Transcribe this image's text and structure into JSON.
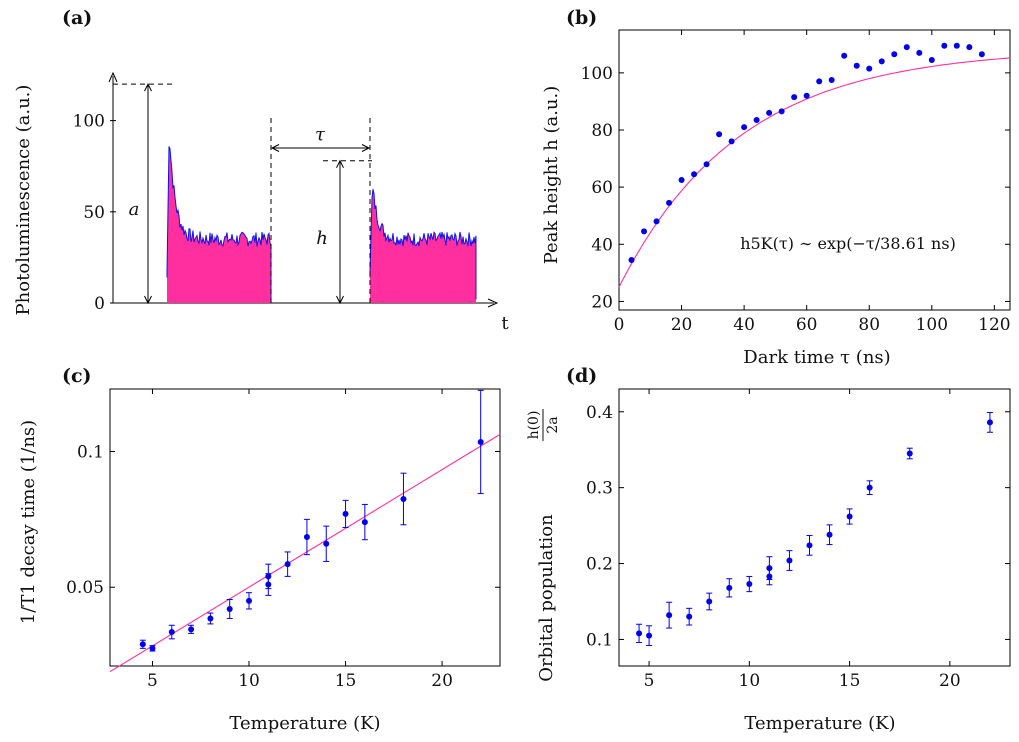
{
  "colors": {
    "points": "#0000ee",
    "fit": "#ff2fa0",
    "fill": "#ff2fa0",
    "trace": "#1010ee"
  },
  "chart_data": [
    {
      "panel": "(a)",
      "type": "area",
      "ylabel": "Photoluminescence (a.u.)",
      "xlabel": "t",
      "yticks": [
        0,
        50,
        100
      ],
      "ylim": [
        0,
        125
      ],
      "annotations": {
        "a": "a",
        "h": "h",
        "tau": "τ"
      },
      "pulse_levels": {
        "peak1": 120,
        "steady": 35,
        "peak2": 78
      }
    },
    {
      "panel": "(b)",
      "type": "scatter",
      "xlabel": "Dark time τ (ns)",
      "ylabel": "Peak height h (a.u.)",
      "xlim": [
        0,
        125
      ],
      "ylim": [
        17,
        115
      ],
      "xticks": [
        0,
        20,
        40,
        60,
        80,
        100,
        120
      ],
      "yticks": [
        20,
        40,
        60,
        80,
        100
      ],
      "annotation": "h5K(τ) ∼ exp(−τ/38.61 ns)",
      "fit": {
        "A": 108.5,
        "B": 83.5,
        "tau": 38.61
      },
      "x": [
        4,
        8,
        12,
        16,
        20,
        24,
        28,
        32,
        36,
        40,
        44,
        48,
        52,
        56,
        60,
        64,
        68,
        72,
        76,
        80,
        84,
        88,
        92,
        96,
        100,
        104,
        108,
        112,
        116
      ],
      "y": [
        34.5,
        44.5,
        48,
        54.5,
        62.5,
        64.5,
        68,
        78.5,
        76,
        81,
        83.5,
        86,
        86.5,
        91.5,
        92,
        97,
        97.5,
        106,
        102.5,
        101.5,
        104,
        106.5,
        109,
        107,
        104.5,
        109.5,
        109.5,
        109,
        106.5
      ]
    },
    {
      "panel": "(c)",
      "type": "scatter",
      "xlabel": "Temperature (K)",
      "ylabel": "1/T1 decay time (1/ns)",
      "xlim": [
        2.8,
        23
      ],
      "ylim": [
        0.021,
        0.123
      ],
      "xticks": [
        5,
        10,
        15,
        20
      ],
      "yticks": [
        0.05,
        0.1
      ],
      "ytick_labels": [
        "0.05",
        "0.1"
      ],
      "fit_line": [
        [
          2.8,
          0.0189
        ],
        [
          23,
          0.1063
        ]
      ],
      "x": [
        4.5,
        5,
        6,
        7,
        8,
        9,
        10,
        11,
        11,
        12,
        13,
        14,
        15,
        16,
        18,
        22
      ],
      "y": [
        0.029,
        0.0275,
        0.0335,
        0.0345,
        0.0385,
        0.042,
        0.045,
        0.051,
        0.054,
        0.0585,
        0.0685,
        0.066,
        0.077,
        0.074,
        0.0825,
        0.1035
      ],
      "err": [
        0.0015,
        0.001,
        0.0025,
        0.0015,
        0.002,
        0.0035,
        0.003,
        0.004,
        0.0045,
        0.0045,
        0.0065,
        0.0065,
        0.005,
        0.0065,
        0.0095,
        0.019
      ]
    },
    {
      "panel": "(d)",
      "type": "scatter",
      "xlabel": "Temperature (K)",
      "ylabel": "Orbital population",
      "ylabel_fraction": {
        "numerator": "h(0)",
        "denominator": "2a"
      },
      "xlim": [
        3.5,
        23
      ],
      "ylim": [
        0.065,
        0.43
      ],
      "xticks": [
        5,
        10,
        15,
        20
      ],
      "yticks": [
        0.1,
        0.2,
        0.3,
        0.4
      ],
      "ytick_labels": [
        "0.1",
        "0.2",
        "0.3",
        "0.4"
      ],
      "x": [
        4.5,
        5,
        6,
        7,
        8,
        9,
        10,
        11,
        11,
        12,
        13,
        14,
        15,
        16,
        18,
        22
      ],
      "y": [
        0.108,
        0.105,
        0.132,
        0.13,
        0.15,
        0.168,
        0.173,
        0.183,
        0.194,
        0.204,
        0.224,
        0.238,
        0.262,
        0.3,
        0.345,
        0.386
      ],
      "err": [
        0.012,
        0.013,
        0.017,
        0.011,
        0.011,
        0.012,
        0.01,
        0.011,
        0.015,
        0.013,
        0.013,
        0.013,
        0.01,
        0.009,
        0.007,
        0.013
      ]
    }
  ]
}
